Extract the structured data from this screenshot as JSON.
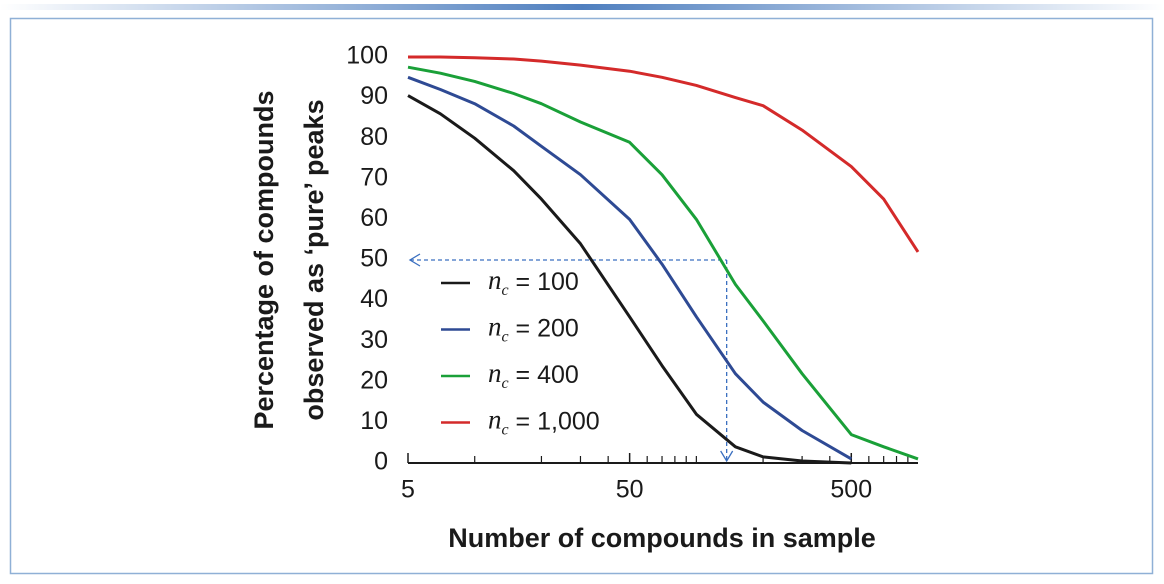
{
  "chart_data": {
    "type": "line",
    "xlabel": "Number of compounds in sample",
    "ylabel": [
      "Percentage of compounds",
      "observed as ‘pure’ peaks"
    ],
    "x": [
      5,
      7,
      10,
      15,
      20,
      30,
      50,
      70,
      100,
      150,
      200,
      300,
      500,
      700,
      1000
    ],
    "series": [
      {
        "name": "nc = 100",
        "color": "#1a1a1a",
        "values": [
          90.5,
          86,
          80,
          72,
          65,
          54,
          36,
          24,
          12,
          4,
          1.5,
          0.5,
          0,
          null,
          null
        ]
      },
      {
        "name": "nc = 200",
        "color": "#2e4a94",
        "values": [
          95,
          92,
          88.5,
          83,
          78,
          71,
          60,
          49,
          36,
          22,
          15,
          8,
          1,
          null,
          null
        ]
      },
      {
        "name": "nc = 400",
        "color": "#1aa038",
        "values": [
          97.5,
          96,
          94,
          91,
          88.5,
          84,
          79,
          71,
          60,
          44,
          35,
          22,
          7,
          4,
          1
        ]
      },
      {
        "name": "nc = 1,000",
        "color": "#d42a2a",
        "values": [
          100,
          100,
          99.8,
          99.5,
          99,
          98,
          96.5,
          95,
          93,
          90,
          88,
          82,
          73,
          65,
          52
        ]
      }
    ],
    "xlim": [
      5,
      1000
    ],
    "xlog": true,
    "xticks": [
      5,
      50,
      500
    ],
    "xminorticks": [
      10,
      20,
      30,
      40,
      60,
      70,
      80,
      90,
      100,
      200,
      300,
      400,
      600,
      700,
      800,
      900
    ],
    "ylim": [
      0,
      100
    ],
    "yticks": [
      0,
      10,
      20,
      30,
      40,
      50,
      60,
      70,
      80,
      90,
      100
    ],
    "reference": {
      "x": 137,
      "y": 50,
      "color": "#3a6fc0"
    }
  }
}
